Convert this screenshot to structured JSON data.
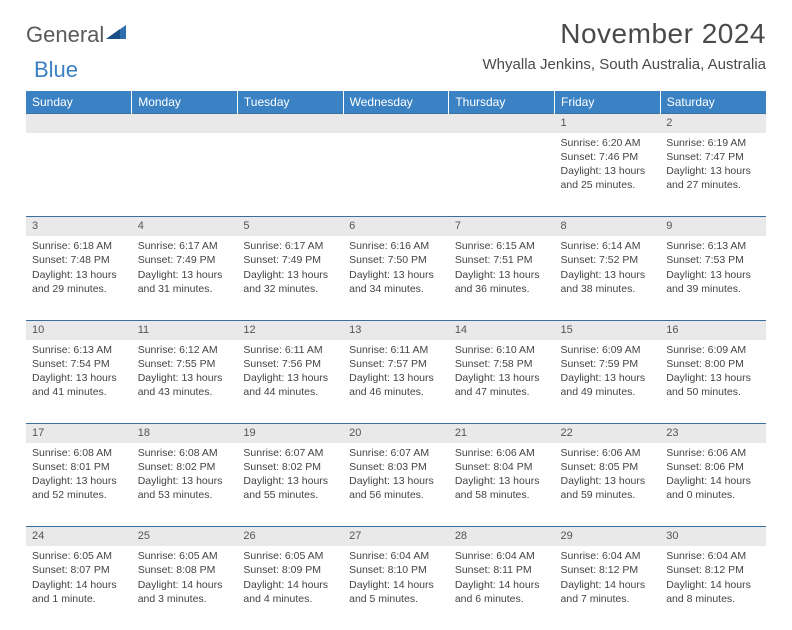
{
  "brand": {
    "part1": "General",
    "part2": "Blue"
  },
  "title": "November 2024",
  "location": "Whyalla Jenkins, South Australia, Australia",
  "colors": {
    "header_bg": "#3b82c4",
    "header_text": "#ffffff",
    "daynum_bg": "#e9e9e9",
    "row_divider": "#3b6fa0",
    "body_text": "#444444",
    "title_text": "#4a4a4a",
    "brand_gray": "#5a5a5a",
    "brand_blue": "#3b7fc4"
  },
  "weekdays": [
    "Sunday",
    "Monday",
    "Tuesday",
    "Wednesday",
    "Thursday",
    "Friday",
    "Saturday"
  ],
  "weeks": [
    [
      null,
      null,
      null,
      null,
      null,
      {
        "n": "1",
        "sr": "6:20 AM",
        "ss": "7:46 PM",
        "dl": "13 hours and 25 minutes."
      },
      {
        "n": "2",
        "sr": "6:19 AM",
        "ss": "7:47 PM",
        "dl": "13 hours and 27 minutes."
      }
    ],
    [
      {
        "n": "3",
        "sr": "6:18 AM",
        "ss": "7:48 PM",
        "dl": "13 hours and 29 minutes."
      },
      {
        "n": "4",
        "sr": "6:17 AM",
        "ss": "7:49 PM",
        "dl": "13 hours and 31 minutes."
      },
      {
        "n": "5",
        "sr": "6:17 AM",
        "ss": "7:49 PM",
        "dl": "13 hours and 32 minutes."
      },
      {
        "n": "6",
        "sr": "6:16 AM",
        "ss": "7:50 PM",
        "dl": "13 hours and 34 minutes."
      },
      {
        "n": "7",
        "sr": "6:15 AM",
        "ss": "7:51 PM",
        "dl": "13 hours and 36 minutes."
      },
      {
        "n": "8",
        "sr": "6:14 AM",
        "ss": "7:52 PM",
        "dl": "13 hours and 38 minutes."
      },
      {
        "n": "9",
        "sr": "6:13 AM",
        "ss": "7:53 PM",
        "dl": "13 hours and 39 minutes."
      }
    ],
    [
      {
        "n": "10",
        "sr": "6:13 AM",
        "ss": "7:54 PM",
        "dl": "13 hours and 41 minutes."
      },
      {
        "n": "11",
        "sr": "6:12 AM",
        "ss": "7:55 PM",
        "dl": "13 hours and 43 minutes."
      },
      {
        "n": "12",
        "sr": "6:11 AM",
        "ss": "7:56 PM",
        "dl": "13 hours and 44 minutes."
      },
      {
        "n": "13",
        "sr": "6:11 AM",
        "ss": "7:57 PM",
        "dl": "13 hours and 46 minutes."
      },
      {
        "n": "14",
        "sr": "6:10 AM",
        "ss": "7:58 PM",
        "dl": "13 hours and 47 minutes."
      },
      {
        "n": "15",
        "sr": "6:09 AM",
        "ss": "7:59 PM",
        "dl": "13 hours and 49 minutes."
      },
      {
        "n": "16",
        "sr": "6:09 AM",
        "ss": "8:00 PM",
        "dl": "13 hours and 50 minutes."
      }
    ],
    [
      {
        "n": "17",
        "sr": "6:08 AM",
        "ss": "8:01 PM",
        "dl": "13 hours and 52 minutes."
      },
      {
        "n": "18",
        "sr": "6:08 AM",
        "ss": "8:02 PM",
        "dl": "13 hours and 53 minutes."
      },
      {
        "n": "19",
        "sr": "6:07 AM",
        "ss": "8:02 PM",
        "dl": "13 hours and 55 minutes."
      },
      {
        "n": "20",
        "sr": "6:07 AM",
        "ss": "8:03 PM",
        "dl": "13 hours and 56 minutes."
      },
      {
        "n": "21",
        "sr": "6:06 AM",
        "ss": "8:04 PM",
        "dl": "13 hours and 58 minutes."
      },
      {
        "n": "22",
        "sr": "6:06 AM",
        "ss": "8:05 PM",
        "dl": "13 hours and 59 minutes."
      },
      {
        "n": "23",
        "sr": "6:06 AM",
        "ss": "8:06 PM",
        "dl": "14 hours and 0 minutes."
      }
    ],
    [
      {
        "n": "24",
        "sr": "6:05 AM",
        "ss": "8:07 PM",
        "dl": "14 hours and 1 minute."
      },
      {
        "n": "25",
        "sr": "6:05 AM",
        "ss": "8:08 PM",
        "dl": "14 hours and 3 minutes."
      },
      {
        "n": "26",
        "sr": "6:05 AM",
        "ss": "8:09 PM",
        "dl": "14 hours and 4 minutes."
      },
      {
        "n": "27",
        "sr": "6:04 AM",
        "ss": "8:10 PM",
        "dl": "14 hours and 5 minutes."
      },
      {
        "n": "28",
        "sr": "6:04 AM",
        "ss": "8:11 PM",
        "dl": "14 hours and 6 minutes."
      },
      {
        "n": "29",
        "sr": "6:04 AM",
        "ss": "8:12 PM",
        "dl": "14 hours and 7 minutes."
      },
      {
        "n": "30",
        "sr": "6:04 AM",
        "ss": "8:12 PM",
        "dl": "14 hours and 8 minutes."
      }
    ]
  ],
  "labels": {
    "sunrise": "Sunrise:",
    "sunset": "Sunset:",
    "daylight": "Daylight:"
  }
}
